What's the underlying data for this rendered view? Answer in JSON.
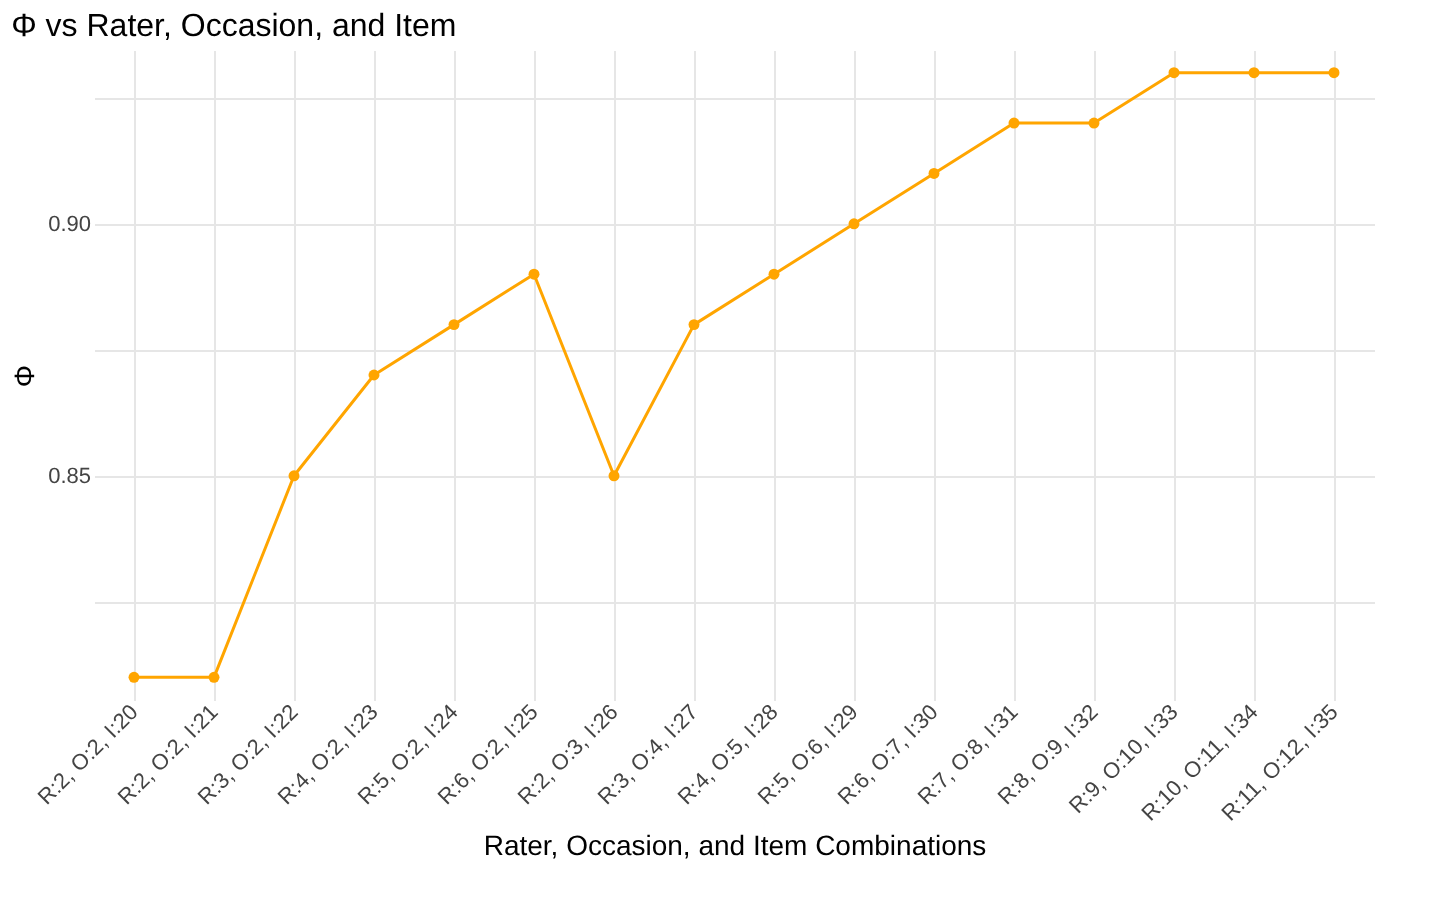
{
  "chart_data": {
    "type": "line",
    "title": "Φ vs Rater, Occasion, and Item",
    "xlabel": "Rater, Occasion, and Item Combinations",
    "ylabel": "Φ",
    "categories": [
      "R:2, O:2, I:20",
      "R:2, O:2, I:21",
      "R:3, O:2, I:22",
      "R:4, O:2, I:23",
      "R:5, O:2, I:24",
      "R:6, O:2, I:25",
      "R:2, O:3, I:26",
      "R:3, O:4, I:27",
      "R:4, O:5, I:28",
      "R:5, O:6, I:29",
      "R:6, O:7, I:30",
      "R:7, O:8, I:31",
      "R:8, O:9, I:32",
      "R:9, O:10, I:33",
      "R:10, O:11, I:34",
      "R:11, O:12, I:35"
    ],
    "series": [
      {
        "color": "#ffa500",
        "values": [
          0.81,
          0.81,
          0.85,
          0.87,
          0.88,
          0.89,
          0.85,
          0.88,
          0.89,
          0.9,
          0.91,
          0.92,
          0.92,
          0.93,
          0.93,
          0.93
        ]
      }
    ],
    "ylim": [
      0.8055,
      0.9345
    ],
    "yticks": [
      {
        "value": 0.825,
        "label": null
      },
      0.85,
      {
        "value": 0.875,
        "label": null
      },
      {
        "value": 0.9,
        "label": "0.90"
      },
      {
        "value": 0.925,
        "label": null
      }
    ],
    "grid": true,
    "marker": "circle",
    "line_style": "solid"
  }
}
